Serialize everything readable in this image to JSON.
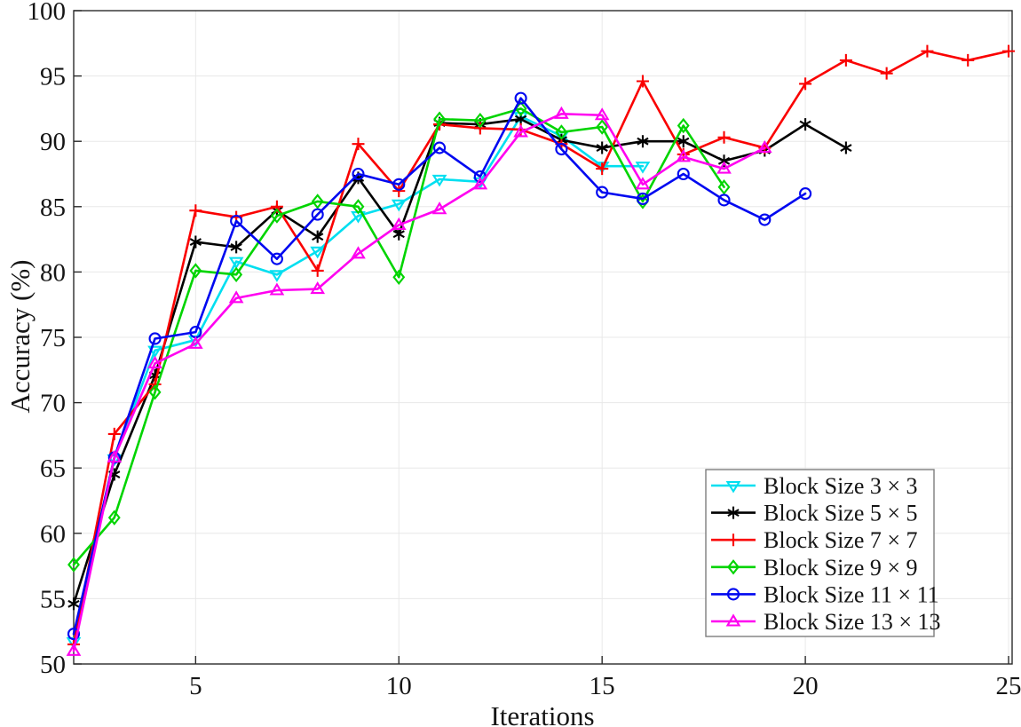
{
  "figure": {
    "background": "#ffffff",
    "axis_color": "#2a2a2a",
    "grid_color": "#e8e8e8"
  },
  "chart_data": {
    "type": "line",
    "title": "",
    "xlabel": "Iterations",
    "ylabel": "Accuracy (%)",
    "xlim": [
      2,
      25
    ],
    "ylim": [
      50,
      100
    ],
    "xticks": [
      5,
      10,
      15,
      20,
      25
    ],
    "yticks": [
      50,
      55,
      60,
      65,
      70,
      75,
      80,
      85,
      90,
      95,
      100
    ],
    "grid": true,
    "legend_position": "bottom-right",
    "series": [
      {
        "name": "Block Size 3 × 3",
        "color": "#00dff0",
        "marker": "triangle-down",
        "points": [
          [
            2,
            51.7
          ],
          [
            3,
            65.7
          ],
          [
            4,
            74.0
          ],
          [
            5,
            74.8
          ],
          [
            6,
            80.8
          ],
          [
            7,
            79.8
          ],
          [
            8,
            81.6
          ],
          [
            9,
            84.3
          ],
          [
            10,
            85.2
          ],
          [
            11,
            87.1
          ],
          [
            12,
            86.9
          ],
          [
            13,
            91.9
          ],
          [
            14,
            90.4
          ],
          [
            15,
            88.1
          ],
          [
            16,
            88.1
          ]
        ]
      },
      {
        "name": "Block Size 5 × 5",
        "color": "#000000",
        "marker": "asterisk",
        "points": [
          [
            2,
            54.6
          ],
          [
            3,
            64.5
          ],
          [
            4,
            72.1
          ],
          [
            5,
            82.3
          ],
          [
            6,
            81.9
          ],
          [
            7,
            84.7
          ],
          [
            8,
            82.7
          ],
          [
            9,
            87.2
          ],
          [
            10,
            82.9
          ],
          [
            11,
            91.4
          ],
          [
            12,
            91.3
          ],
          [
            13,
            91.7
          ],
          [
            14,
            90.1
          ],
          [
            15,
            89.5
          ],
          [
            16,
            90.0
          ],
          [
            17,
            90.0
          ],
          [
            18,
            88.5
          ],
          [
            19,
            89.3
          ],
          [
            20,
            91.3
          ],
          [
            21,
            89.5
          ]
        ]
      },
      {
        "name": "Block Size 7 × 7",
        "color": "#fa0000",
        "marker": "plus",
        "points": [
          [
            2,
            51.5
          ],
          [
            3,
            67.6
          ],
          [
            4,
            71.4
          ],
          [
            5,
            84.7
          ],
          [
            6,
            84.2
          ],
          [
            7,
            85.0
          ],
          [
            8,
            80.1
          ],
          [
            9,
            89.8
          ],
          [
            10,
            86.2
          ],
          [
            11,
            91.3
          ],
          [
            12,
            91.0
          ],
          [
            13,
            90.9
          ],
          [
            14,
            89.8
          ],
          [
            15,
            87.9
          ],
          [
            16,
            94.6
          ],
          [
            17,
            89.0
          ],
          [
            18,
            90.3
          ],
          [
            19,
            89.5
          ],
          [
            20,
            94.4
          ],
          [
            21,
            96.2
          ],
          [
            22,
            95.2
          ],
          [
            23,
            96.9
          ],
          [
            24,
            96.2
          ],
          [
            25,
            96.9
          ]
        ]
      },
      {
        "name": "Block Size 9 × 9",
        "color": "#00d400",
        "marker": "diamond",
        "points": [
          [
            2,
            57.6
          ],
          [
            3,
            61.2
          ],
          [
            4,
            70.8
          ],
          [
            5,
            80.1
          ],
          [
            6,
            79.8
          ],
          [
            7,
            84.3
          ],
          [
            8,
            85.4
          ],
          [
            9,
            85.0
          ],
          [
            10,
            79.6
          ],
          [
            11,
            91.7
          ],
          [
            12,
            91.6
          ],
          [
            13,
            92.5
          ],
          [
            14,
            90.7
          ],
          [
            15,
            91.1
          ],
          [
            16,
            85.4
          ],
          [
            17,
            91.2
          ],
          [
            18,
            86.5
          ]
        ]
      },
      {
        "name": "Block Size 11 × 11",
        "color": "#0008f0",
        "marker": "circle",
        "points": [
          [
            2,
            52.3
          ],
          [
            3,
            65.8
          ],
          [
            4,
            74.9
          ],
          [
            5,
            75.4
          ],
          [
            6,
            83.9
          ],
          [
            7,
            81.0
          ],
          [
            8,
            84.4
          ],
          [
            9,
            87.5
          ],
          [
            10,
            86.7
          ],
          [
            11,
            89.5
          ],
          [
            12,
            87.3
          ],
          [
            13,
            93.3
          ],
          [
            14,
            89.4
          ],
          [
            15,
            86.1
          ],
          [
            16,
            85.6
          ],
          [
            17,
            87.5
          ],
          [
            18,
            85.5
          ],
          [
            19,
            84.0
          ],
          [
            20,
            86.0
          ]
        ]
      },
      {
        "name": "Block Size 13 × 13",
        "color": "#ff00f0",
        "marker": "triangle-up",
        "points": [
          [
            2,
            51.0
          ],
          [
            3,
            65.8
          ],
          [
            4,
            73.0
          ],
          [
            5,
            74.5
          ],
          [
            6,
            78.0
          ],
          [
            7,
            78.6
          ],
          [
            8,
            78.7
          ],
          [
            9,
            81.4
          ],
          [
            10,
            83.6
          ],
          [
            11,
            84.8
          ],
          [
            12,
            86.7
          ],
          [
            13,
            90.7
          ],
          [
            14,
            92.1
          ],
          [
            15,
            92.0
          ],
          [
            16,
            86.7
          ],
          [
            17,
            88.8
          ],
          [
            18,
            87.9
          ],
          [
            19,
            89.5
          ]
        ]
      }
    ]
  }
}
